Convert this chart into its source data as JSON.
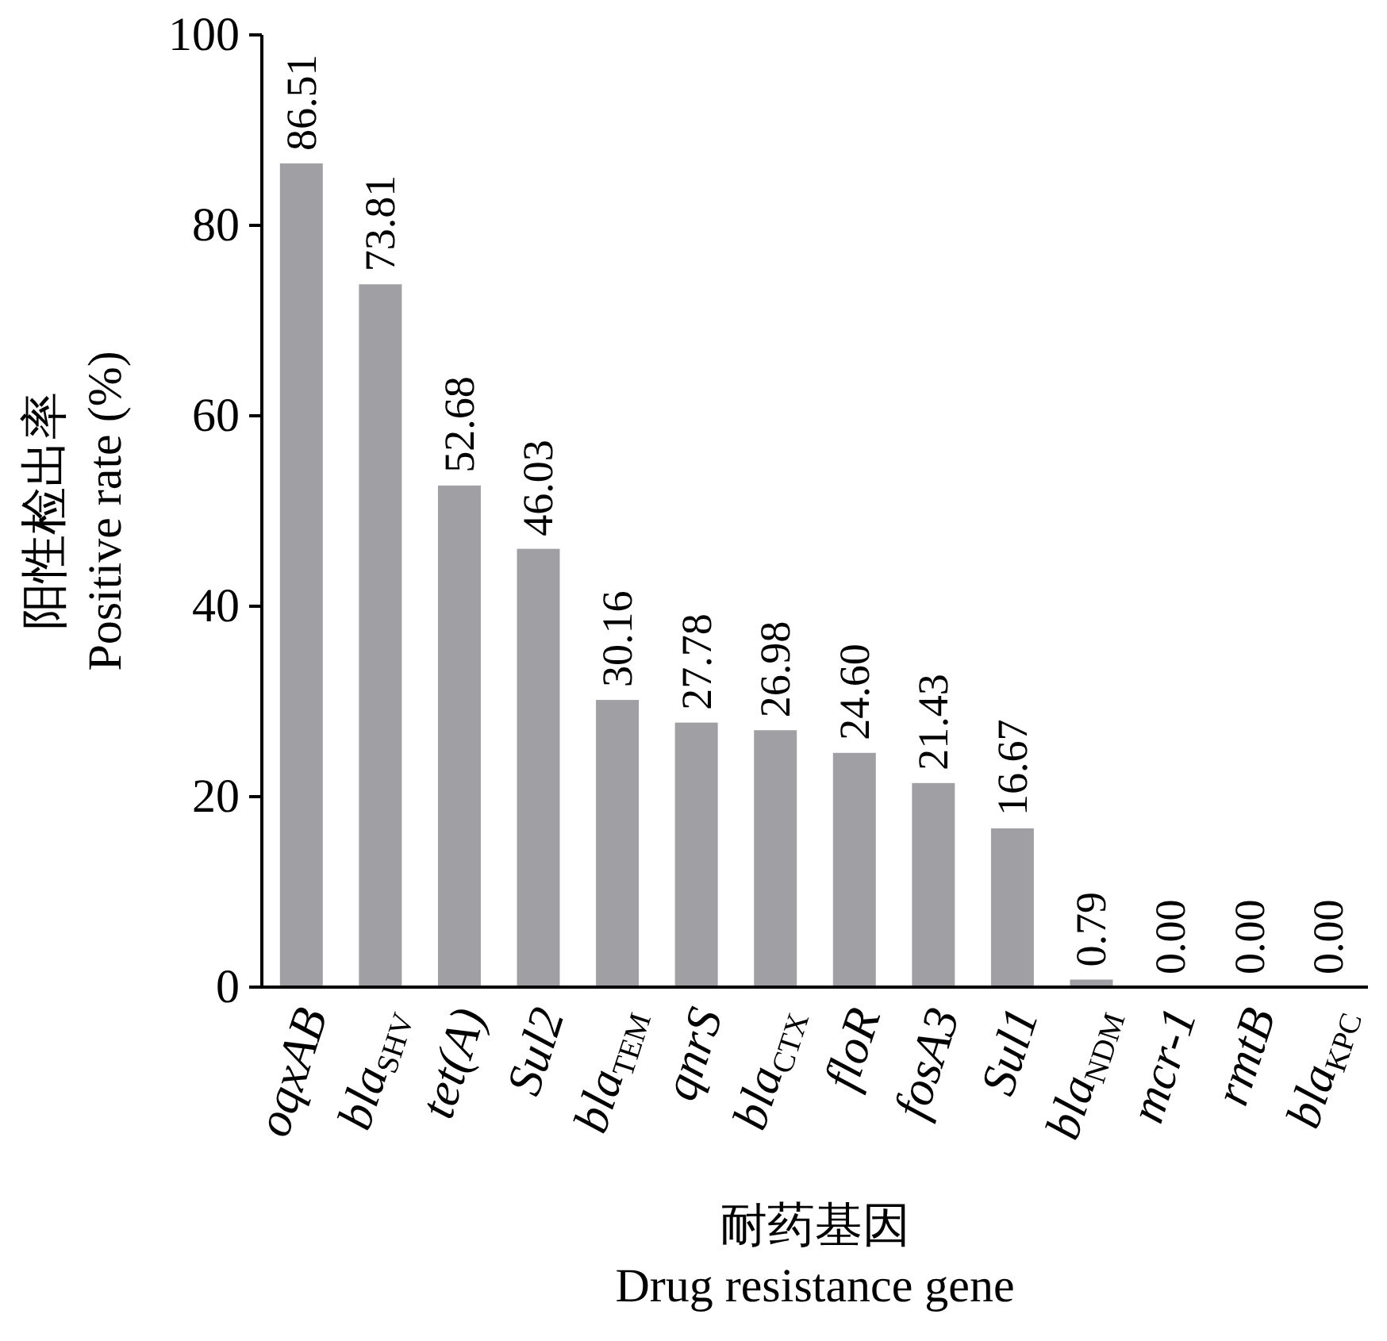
{
  "chart_data": {
    "type": "bar",
    "xlabel": "耐药基因\nDrug resistance gene",
    "ylabel": "阳性检出率\nPositive rate (%)",
    "categories": [
      "oqxAB",
      "bla$_{SHV}$",
      "tet(A)",
      "Sul2",
      "bla$_{TEM}$",
      "qnrS",
      "bla$_{CTX}$",
      "floR",
      "fosA3",
      "Sul1",
      "bla$_{NDM}$",
      "mcr-1",
      "rmtB",
      "bla$_{KPC}$"
    ],
    "values": [
      86.51,
      73.81,
      52.68,
      46.03,
      30.16,
      27.78,
      26.98,
      24.6,
      21.43,
      16.67,
      0.79,
      0,
      0,
      0
    ],
    "value_labels": [
      "86.51",
      "73.81",
      "52.68",
      "46.03",
      "30.16",
      "27.78",
      "26.98",
      "24.60",
      "21.43",
      "16.67",
      "0.79",
      "0.00",
      "0.00",
      "0.00"
    ],
    "color": "#a0a0a4",
    "ylim": [
      0,
      100
    ],
    "yticks": [
      0,
      20,
      40,
      60,
      80,
      100
    ],
    "grid": false
  }
}
